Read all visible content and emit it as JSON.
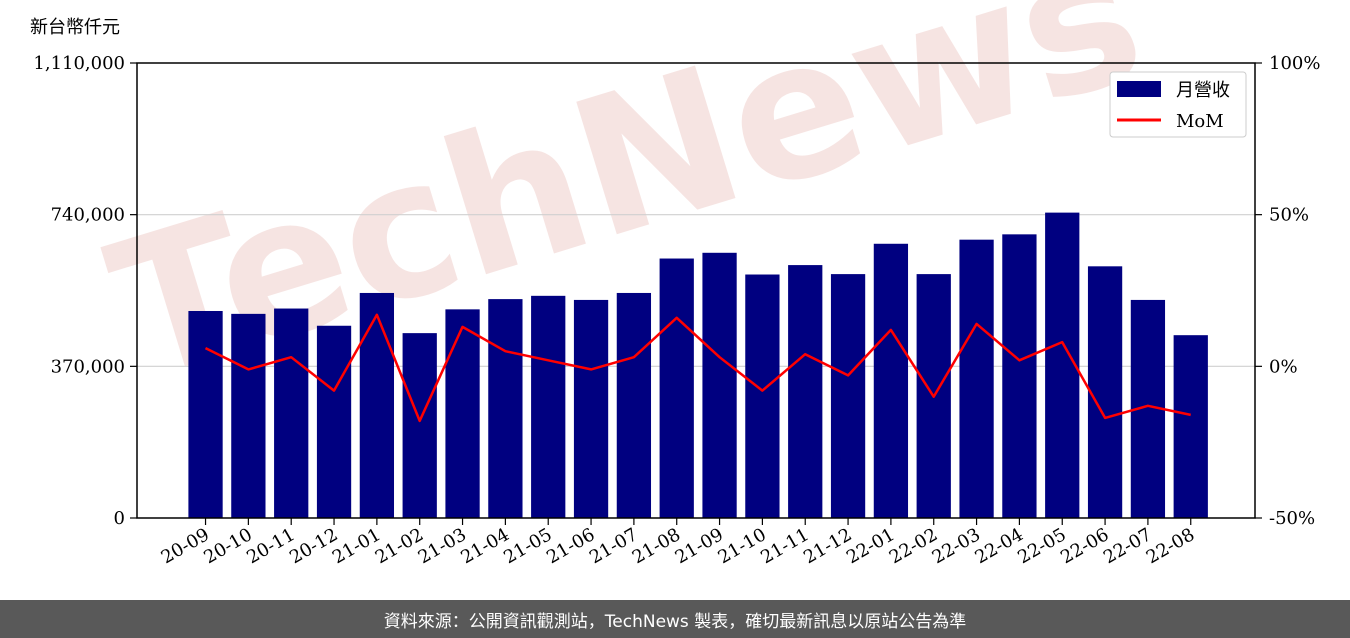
{
  "chart_data": {
    "type": "bar",
    "y_unit_label": "新台幣仟元",
    "categories": [
      "20-09",
      "20-10",
      "20-11",
      "20-12",
      "21-01",
      "21-02",
      "21-03",
      "21-04",
      "21-05",
      "21-06",
      "21-07",
      "21-08",
      "21-09",
      "21-10",
      "21-11",
      "21-12",
      "22-01",
      "22-02",
      "22-03",
      "22-04",
      "22-05",
      "22-06",
      "22-07",
      "22-08"
    ],
    "series": [
      {
        "name": "月營收",
        "type": "bar",
        "axis": "left",
        "color": "#000080",
        "values": [
          505000,
          498000,
          511000,
          469000,
          549000,
          451000,
          509000,
          534000,
          542000,
          532000,
          549000,
          633000,
          647000,
          594000,
          617000,
          595000,
          669000,
          595000,
          679000,
          692000,
          745000,
          614000,
          532000,
          446000
        ]
      },
      {
        "name": "MoM",
        "type": "line",
        "axis": "right",
        "color": "#ff0000",
        "values": [
          6,
          -1,
          3,
          -8,
          17,
          -18,
          13,
          5,
          2,
          -1,
          3,
          16,
          3,
          -8,
          4,
          -3,
          12,
          -10,
          14,
          2,
          8,
          -17,
          -13,
          -16
        ]
      }
    ],
    "y_left": {
      "ylim": [
        0,
        1110000
      ],
      "ticks": [
        0,
        370000,
        740000,
        1110000
      ],
      "tick_labels": [
        "0",
        "370,000",
        "740,000",
        "1,110,000"
      ]
    },
    "y_right": {
      "ylim": [
        -50,
        100
      ],
      "ticks": [
        -50,
        0,
        50,
        100
      ],
      "tick_labels": [
        "-50%",
        "0%",
        "50%",
        "100%"
      ]
    },
    "grid": "horizontal",
    "legend_position": "top-right",
    "watermark": "TechNews"
  },
  "footer": {
    "text": "資料來源：公開資訊觀測站，TechNews 製表，確切最新訊息以原站公告為準"
  }
}
